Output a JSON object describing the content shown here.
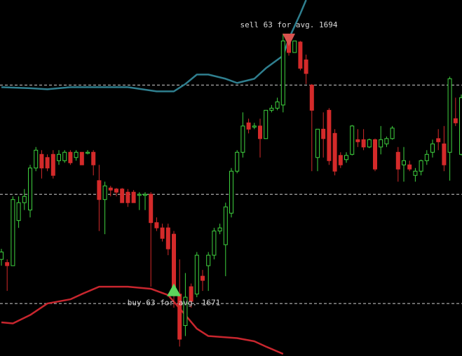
{
  "chart_data": {
    "type": "candlestick",
    "ylim": [
      1664.1,
      1698
    ],
    "up_color": "#3fd23f",
    "down_color": "#d42a2a",
    "open": [
      1673.3,
      1673.0,
      1672.7,
      1677.0,
      1678.7,
      1678.0,
      1682.0,
      1683.3,
      1683.0,
      1683.3,
      1682.7,
      1682.7,
      1683.5,
      1683.0,
      1683.5,
      1683.4,
      1683.5,
      1680.8,
      1679.0,
      1680.1,
      1680.0,
      1680.0,
      1679.7,
      1679.7,
      1679.4,
      1679.4,
      1679.5,
      1676.8,
      1676.3,
      1676.3,
      1675.7,
      1670.0,
      1667.0,
      1670.7,
      1670.0,
      1671.7,
      1672.7,
      1673.7,
      1676.0,
      1674.7,
      1677.7,
      1681.7,
      1683.5,
      1686.3,
      1685.9,
      1686.0,
      1684.8,
      1687.5,
      1687.7,
      1688.0,
      1694.0,
      1693.0,
      1694.0,
      1692.3,
      1689.9,
      1683.0,
      1685.7,
      1687.5,
      1685.3,
      1683.2,
      1682.8,
      1683.3,
      1684.7,
      1684.7,
      1684.0,
      1684.7,
      1684.0,
      1684.3,
      1684.8,
      1683.5,
      1682.3,
      1682.3,
      1681.3,
      1681.7,
      1682.7,
      1683.5,
      1684.8,
      1684.3,
      1683.5,
      1686.7,
      1683.3
    ],
    "high": [
      1674.3,
      1673.3,
      1679.3,
      1679.3,
      1680.0,
      1682.3,
      1684.0,
      1683.7,
      1683.3,
      1683.7,
      1683.7,
      1683.7,
      1683.7,
      1683.7,
      1683.5,
      1683.7,
      1683.7,
      1682.3,
      1680.7,
      1680.3,
      1680.1,
      1680.1,
      1680.0,
      1679.9,
      1679.7,
      1679.7,
      1679.7,
      1677.3,
      1676.7,
      1676.7,
      1676.0,
      1673.3,
      1672.0,
      1671.0,
      1674.0,
      1672.3,
      1674.0,
      1676.3,
      1676.7,
      1678.7,
      1682.0,
      1683.7,
      1687.3,
      1686.7,
      1686.3,
      1686.7,
      1687.5,
      1688.0,
      1688.7,
      1694.8,
      1694.1,
      1694.1,
      1694.1,
      1692.8,
      1690.0,
      1685.7,
      1687.3,
      1687.7,
      1685.7,
      1683.5,
      1683.5,
      1686.1,
      1685.7,
      1685.7,
      1684.8,
      1684.8,
      1686.0,
      1685.0,
      1686.0,
      1684.0,
      1684.0,
      1682.7,
      1682.0,
      1682.8,
      1683.7,
      1684.7,
      1685.7,
      1686.0,
      1690.7,
      1688.7,
      1689.0
    ],
    "low": [
      1672.7,
      1670.3,
      1672.7,
      1676.3,
      1678.0,
      1677.3,
      1681.7,
      1681.0,
      1681.7,
      1681.0,
      1682.3,
      1682.5,
      1682.3,
      1682.7,
      1682.3,
      1683.3,
      1681.3,
      1676.0,
      1675.7,
      1679.3,
      1679.3,
      1678.7,
      1678.3,
      1678.7,
      1678.0,
      1678.0,
      1670.7,
      1676.0,
      1675.0,
      1673.7,
      1668.7,
      1665.0,
      1666.0,
      1668.7,
      1669.7,
      1670.3,
      1670.3,
      1673.3,
      1675.7,
      1671.7,
      1677.3,
      1681.5,
      1683.0,
      1685.3,
      1685.7,
      1683.0,
      1684.8,
      1687.3,
      1687.5,
      1687.3,
      1692.7,
      1693.0,
      1691.3,
      1690.0,
      1681.7,
      1681.7,
      1683.0,
      1682.3,
      1681.3,
      1682.0,
      1682.5,
      1683.2,
      1684.0,
      1683.7,
      1683.9,
      1681.7,
      1683.3,
      1684.0,
      1684.7,
      1680.7,
      1680.7,
      1681.7,
      1680.7,
      1681.3,
      1682.3,
      1683.0,
      1683.7,
      1681.7,
      1680.8,
      1686.0,
      1683.2
    ],
    "close": [
      1674.0,
      1672.7,
      1679.0,
      1678.7,
      1679.3,
      1682.0,
      1683.7,
      1682.0,
      1682.0,
      1681.3,
      1683.3,
      1683.5,
      1682.5,
      1683.5,
      1682.3,
      1683.5,
      1682.3,
      1679.0,
      1680.3,
      1679.9,
      1679.7,
      1678.7,
      1678.7,
      1678.7,
      1679.5,
      1679.5,
      1676.8,
      1676.3,
      1675.3,
      1674.3,
      1670.0,
      1665.7,
      1669.7,
      1669.3,
      1673.7,
      1671.3,
      1673.7,
      1676.0,
      1676.3,
      1678.3,
      1681.7,
      1683.5,
      1686.0,
      1685.7,
      1686.0,
      1684.8,
      1687.5,
      1687.7,
      1688.3,
      1694.1,
      1693.0,
      1694.1,
      1691.5,
      1691.0,
      1687.5,
      1685.7,
      1684.8,
      1682.7,
      1681.7,
      1682.3,
      1683.2,
      1686.0,
      1684.5,
      1684.0,
      1684.7,
      1681.9,
      1684.7,
      1684.8,
      1685.8,
      1681.9,
      1682.7,
      1681.9,
      1681.7,
      1682.7,
      1683.3,
      1684.3,
      1684.5,
      1682.3,
      1690.5,
      1686.3,
      1688.7
    ],
    "bands": [
      {
        "color": "#2f7f8f",
        "x": [
          0,
          5,
          8,
          12,
          17,
          22,
          27,
          30,
          32,
          34,
          36,
          39,
          41,
          44,
          46,
          49,
          50,
          52,
          53
        ],
        "values": [
          1689.7,
          1689.6,
          1689.5,
          1689.7,
          1689.7,
          1689.7,
          1689.3,
          1689.3,
          1690.0,
          1690.9,
          1690.9,
          1690.5,
          1690.1,
          1690.5,
          1691.5,
          1692.7,
          1694.3,
          1696.7,
          1698.0
        ]
      },
      {
        "color": "#c8262e",
        "x": [
          0,
          2,
          5,
          8,
          12,
          14,
          17,
          22,
          26,
          29,
          32,
          34,
          36,
          41,
          44,
          46,
          49
        ],
        "values": [
          1667.3,
          1667.2,
          1668.0,
          1669.1,
          1669.5,
          1670.0,
          1670.7,
          1670.7,
          1670.5,
          1669.9,
          1668.0,
          1666.7,
          1666.0,
          1665.8,
          1665.5,
          1665.0,
          1664.3
        ]
      }
    ],
    "levels": [
      1689.9,
      1679.5,
      1669.1
    ],
    "trades": [
      {
        "side": "sell",
        "index": 50,
        "price": 1694,
        "label": "sell 63 for avg. 1694",
        "color": "#d9534f"
      },
      {
        "side": "buy",
        "index": 30,
        "price": 1671,
        "label": "buy 63 for avg. 1671",
        "color": "#5cd65c"
      }
    ]
  }
}
